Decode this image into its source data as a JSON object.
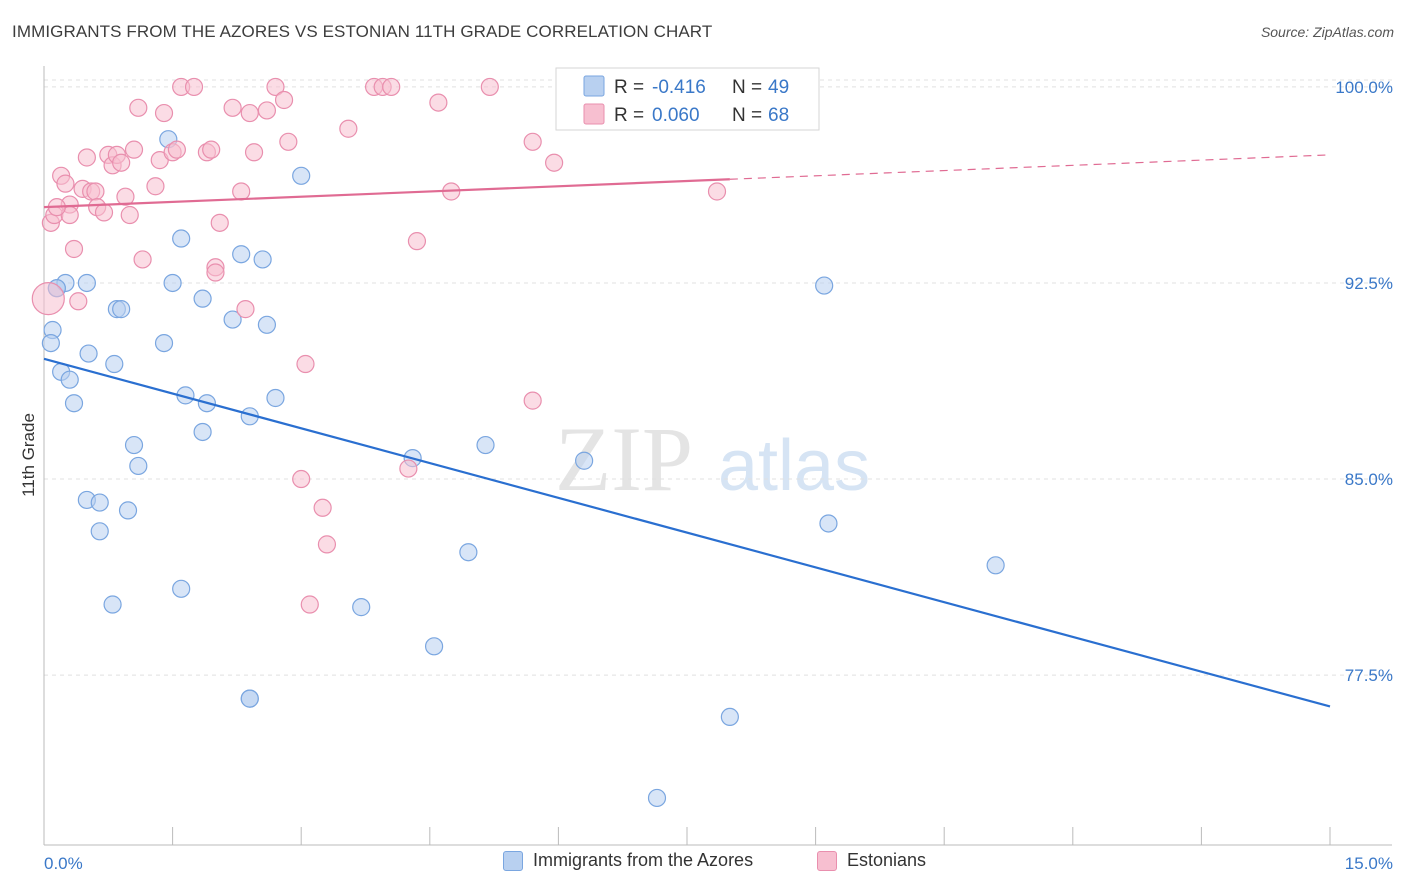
{
  "header": {
    "title": "IMMIGRANTS FROM THE AZORES VS ESTONIAN 11TH GRADE CORRELATION CHART",
    "source": "Source: ZipAtlas.com"
  },
  "watermark": {
    "zip": "ZIP",
    "atlas": "atlas"
  },
  "colors": {
    "blue_fill": "#b8d0f0",
    "blue_stroke": "#7aa6e0",
    "blue_line": "#2a6fd0",
    "pink_fill": "#f7bfd0",
    "pink_stroke": "#e98fae",
    "pink_line": "#e06b93",
    "axis_label": "#3a78c8",
    "grid": "#e0e0e0"
  },
  "chart_data": {
    "type": "scatter",
    "xlabel": "",
    "ylabel": "11th Grade",
    "xlim": [
      0,
      15
    ],
    "ylim": [
      71.0,
      100.8
    ],
    "x_tick_labels": [
      {
        "value": 0,
        "label": "0.0%"
      },
      {
        "value": 15,
        "label": "15.0%"
      }
    ],
    "y_tick_labels": [
      {
        "value": 100.0,
        "label": "100.0%"
      },
      {
        "value": 92.5,
        "label": "92.5%"
      },
      {
        "value": 85.0,
        "label": "85.0%"
      },
      {
        "value": 77.5,
        "label": "77.5%"
      }
    ],
    "grid": true,
    "legend": {
      "position": "top-center",
      "entries": [
        {
          "r_label": "R = ",
          "r_value": "-0.416",
          "n_label": "N = ",
          "n_value": "49"
        },
        {
          "r_label": "R = ",
          "r_value": "0.060",
          "n_label": "N = ",
          "n_value": "68"
        }
      ]
    },
    "series": [
      {
        "name": "Immigrants from the Azores",
        "color": "#b8d0f0",
        "trend": {
          "x": [
            0,
            15
          ],
          "y": [
            89.6,
            76.3
          ],
          "dashed_from": null
        },
        "points": [
          [
            0.1,
            90.7
          ],
          [
            0.08,
            90.2
          ],
          [
            0.15,
            92.3
          ],
          [
            0.25,
            92.5
          ],
          [
            0.2,
            89.1
          ],
          [
            0.3,
            88.8
          ],
          [
            0.35,
            87.9
          ],
          [
            0.5,
            92.5
          ],
          [
            0.52,
            89.8
          ],
          [
            0.85,
            91.5
          ],
          [
            0.9,
            91.5
          ],
          [
            0.82,
            89.4
          ],
          [
            0.5,
            84.2
          ],
          [
            0.65,
            84.1
          ],
          [
            0.65,
            83.0
          ],
          [
            0.98,
            83.8
          ],
          [
            1.05,
            86.3
          ],
          [
            1.1,
            85.5
          ],
          [
            0.8,
            80.2
          ],
          [
            1.45,
            98.0
          ],
          [
            1.6,
            94.2
          ],
          [
            1.5,
            92.5
          ],
          [
            1.85,
            91.9
          ],
          [
            1.4,
            90.2
          ],
          [
            1.65,
            88.2
          ],
          [
            1.9,
            87.9
          ],
          [
            1.85,
            86.8
          ],
          [
            2.2,
            91.1
          ],
          [
            2.3,
            93.6
          ],
          [
            2.4,
            87.4
          ],
          [
            2.4,
            76.6
          ],
          [
            2.4,
            76.6
          ],
          [
            2.55,
            93.4
          ],
          [
            2.7,
            88.1
          ],
          [
            2.6,
            90.9
          ],
          [
            3.0,
            96.6
          ],
          [
            3.7,
            80.1
          ],
          [
            4.3,
            85.8
          ],
          [
            4.55,
            78.6
          ],
          [
            4.95,
            82.2
          ],
          [
            5.15,
            86.3
          ],
          [
            6.3,
            85.7
          ],
          [
            8.0,
            75.9
          ],
          [
            7.15,
            72.8
          ],
          [
            9.1,
            92.4
          ],
          [
            9.15,
            83.3
          ],
          [
            11.1,
            81.7
          ],
          [
            0.15,
            92.3
          ],
          [
            1.6,
            80.8
          ]
        ]
      },
      {
        "name": "Estonians",
        "color": "#f7bfd0",
        "trend": {
          "x": [
            0,
            15
          ],
          "y": [
            95.4,
            97.4
          ],
          "dashed_from": 8.0
        },
        "points": [
          [
            0.05,
            91.9
          ],
          [
            0.08,
            94.8
          ],
          [
            0.12,
            95.1
          ],
          [
            0.2,
            96.6
          ],
          [
            0.25,
            96.3
          ],
          [
            0.3,
            95.5
          ],
          [
            0.3,
            95.1
          ],
          [
            0.35,
            93.8
          ],
          [
            0.4,
            91.8
          ],
          [
            0.45,
            96.1
          ],
          [
            0.5,
            97.3
          ],
          [
            0.55,
            96.0
          ],
          [
            0.6,
            96.0
          ],
          [
            0.62,
            95.4
          ],
          [
            0.7,
            95.2
          ],
          [
            0.75,
            97.4
          ],
          [
            0.8,
            97.0
          ],
          [
            0.85,
            97.4
          ],
          [
            0.9,
            97.1
          ],
          [
            0.95,
            95.8
          ],
          [
            1.0,
            95.1
          ],
          [
            1.05,
            97.6
          ],
          [
            1.15,
            93.4
          ],
          [
            1.1,
            99.2
          ],
          [
            1.3,
            96.2
          ],
          [
            1.35,
            97.2
          ],
          [
            1.4,
            99.0
          ],
          [
            1.5,
            97.5
          ],
          [
            1.55,
            97.6
          ],
          [
            1.6,
            100.0
          ],
          [
            1.75,
            100.0
          ],
          [
            1.9,
            97.5
          ],
          [
            1.95,
            97.6
          ],
          [
            2.0,
            93.1
          ],
          [
            2.0,
            92.9
          ],
          [
            2.05,
            94.8
          ],
          [
            2.2,
            99.2
          ],
          [
            2.3,
            96.0
          ],
          [
            2.35,
            91.5
          ],
          [
            2.4,
            99.0
          ],
          [
            2.45,
            97.5
          ],
          [
            2.6,
            99.1
          ],
          [
            2.7,
            100.0
          ],
          [
            2.8,
            99.5
          ],
          [
            2.85,
            97.9
          ],
          [
            3.05,
            89.4
          ],
          [
            3.0,
            85.0
          ],
          [
            3.25,
            83.9
          ],
          [
            3.3,
            82.5
          ],
          [
            3.1,
            80.2
          ],
          [
            3.55,
            98.4
          ],
          [
            3.85,
            100.0
          ],
          [
            3.95,
            100.0
          ],
          [
            4.05,
            100.0
          ],
          [
            4.25,
            85.4
          ],
          [
            4.35,
            94.1
          ],
          [
            4.6,
            99.4
          ],
          [
            4.75,
            96.0
          ],
          [
            5.2,
            100.0
          ],
          [
            5.7,
            97.9
          ],
          [
            5.7,
            88.0
          ],
          [
            5.95,
            97.1
          ],
          [
            6.2,
            100.0
          ],
          [
            6.35,
            100.0
          ],
          [
            6.4,
            100.0
          ],
          [
            8.0,
            100.0
          ],
          [
            7.85,
            96.0
          ],
          [
            0.15,
            95.4
          ]
        ]
      }
    ]
  }
}
